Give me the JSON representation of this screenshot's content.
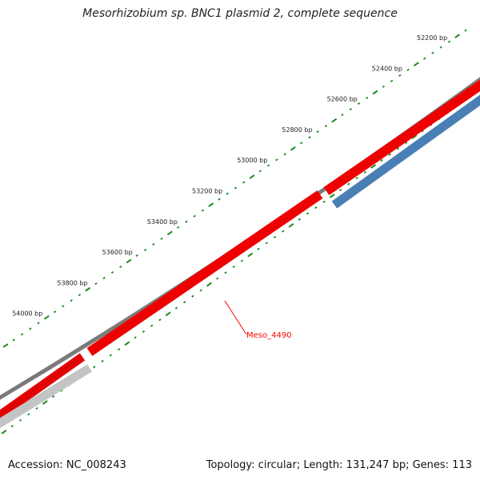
{
  "title": "Mesorhizobium sp. BNC1 plasmid 2, complete sequence",
  "footer": {
    "accession": "Accession: NC_008243",
    "summary": "Topology: circular; Length: 131,247 bp; Genes: 113"
  },
  "ruler": {
    "labels": [
      "52200 bp",
      "52400 bp",
      "52600 bp",
      "52800 bp",
      "53000 bp",
      "53200 bp",
      "53400 bp",
      "53600 bp",
      "53800 bp",
      "54000 bp"
    ]
  },
  "gene_label": "Meso_4490",
  "colors": {
    "backbone": "#808080",
    "forward_gene": "#ff0000",
    "reverse_gene": "#4a7fb5",
    "other_gene": "#c0c0c0",
    "ticks": "#1a8a1a",
    "label_line": "#ff0000"
  }
}
